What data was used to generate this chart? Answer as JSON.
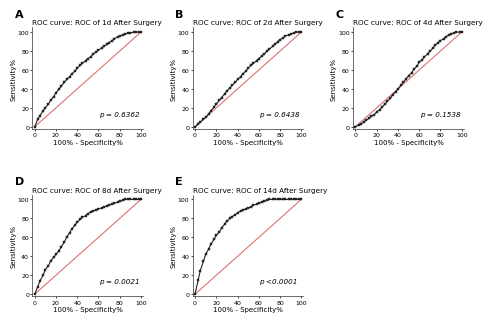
{
  "panels": [
    {
      "label": "A",
      "title": "ROC curve: ROC of 1d After Surgery",
      "p_value": "p = 0.6362",
      "roc_x": [
        0,
        3,
        5,
        8,
        10,
        13,
        15,
        18,
        20,
        23,
        25,
        28,
        30,
        33,
        35,
        38,
        40,
        43,
        45,
        48,
        50,
        53,
        55,
        58,
        60,
        63,
        65,
        68,
        70,
        73,
        75,
        78,
        80,
        83,
        85,
        88,
        90,
        93,
        95,
        98,
        100
      ],
      "roc_y": [
        0,
        8,
        12,
        17,
        20,
        24,
        28,
        32,
        36,
        40,
        43,
        47,
        50,
        53,
        56,
        59,
        62,
        65,
        67,
        70,
        72,
        74,
        77,
        79,
        81,
        83,
        85,
        87,
        89,
        91,
        93,
        95,
        96,
        97,
        98,
        99,
        99,
        100,
        100,
        100,
        100
      ]
    },
    {
      "label": "B",
      "title": "ROC curve: ROC of 2d After Surgery",
      "p_value": "p = 0.6438",
      "roc_x": [
        0,
        3,
        5,
        8,
        10,
        13,
        15,
        18,
        20,
        23,
        25,
        28,
        30,
        33,
        35,
        38,
        40,
        43,
        45,
        48,
        50,
        53,
        55,
        58,
        60,
        63,
        65,
        68,
        70,
        73,
        75,
        78,
        80,
        83,
        85,
        88,
        90,
        93,
        95,
        98,
        100
      ],
      "roc_y": [
        0,
        3,
        5,
        8,
        10,
        14,
        17,
        21,
        24,
        28,
        31,
        35,
        38,
        41,
        44,
        47,
        50,
        53,
        56,
        59,
        62,
        65,
        67,
        70,
        72,
        75,
        77,
        80,
        82,
        85,
        87,
        90,
        92,
        94,
        96,
        97,
        98,
        99,
        100,
        100,
        100
      ]
    },
    {
      "label": "C",
      "title": "ROC curve: ROC of 4d After Surgery",
      "p_value": "p = 0.1538",
      "roc_x": [
        0,
        3,
        5,
        8,
        10,
        13,
        15,
        18,
        20,
        23,
        25,
        28,
        30,
        33,
        35,
        38,
        40,
        43,
        45,
        48,
        50,
        53,
        55,
        58,
        60,
        63,
        65,
        68,
        70,
        73,
        75,
        78,
        80,
        83,
        85,
        88,
        90,
        93,
        95,
        98,
        100
      ],
      "roc_y": [
        0,
        2,
        3,
        5,
        7,
        9,
        11,
        13,
        16,
        18,
        21,
        24,
        27,
        30,
        34,
        37,
        40,
        44,
        47,
        51,
        54,
        57,
        61,
        64,
        68,
        71,
        74,
        77,
        80,
        83,
        86,
        89,
        91,
        93,
        95,
        97,
        98,
        99,
        100,
        100,
        100
      ]
    },
    {
      "label": "D",
      "title": "ROC curve: ROC of 8d After Surgery",
      "p_value": "p = 0.0021",
      "roc_x": [
        0,
        3,
        5,
        8,
        10,
        13,
        15,
        18,
        20,
        23,
        25,
        28,
        30,
        33,
        35,
        38,
        40,
        43,
        45,
        48,
        50,
        53,
        55,
        58,
        60,
        63,
        65,
        68,
        70,
        73,
        75,
        78,
        80,
        83,
        85,
        88,
        90,
        93,
        95,
        98,
        100
      ],
      "roc_y": [
        0,
        8,
        14,
        20,
        26,
        30,
        35,
        39,
        42,
        46,
        50,
        55,
        60,
        65,
        69,
        73,
        76,
        79,
        81,
        83,
        85,
        87,
        88,
        89,
        90,
        91,
        92,
        93,
        94,
        95,
        96,
        97,
        98,
        99,
        100,
        100,
        100,
        100,
        100,
        100,
        100
      ]
    },
    {
      "label": "E",
      "title": "ROC curve: ROC of 14d After Surgery",
      "p_value": "p <0.0001",
      "roc_x": [
        0,
        3,
        5,
        8,
        10,
        13,
        15,
        18,
        20,
        23,
        25,
        28,
        30,
        33,
        35,
        38,
        40,
        43,
        45,
        48,
        50,
        53,
        55,
        58,
        60,
        63,
        65,
        68,
        70,
        73,
        75,
        78,
        80,
        83,
        85,
        88,
        90,
        93,
        95,
        98,
        100
      ],
      "roc_y": [
        0,
        15,
        25,
        35,
        42,
        48,
        53,
        58,
        62,
        66,
        70,
        74,
        77,
        80,
        82,
        84,
        86,
        88,
        89,
        90,
        91,
        92,
        94,
        95,
        96,
        97,
        98,
        99,
        100,
        100,
        100,
        100,
        100,
        100,
        100,
        100,
        100,
        100,
        100,
        100,
        100
      ]
    }
  ],
  "diagonal_color": "#e07070",
  "curve_color": "#222222",
  "marker_style": "s",
  "marker_size": 2.0,
  "line_width": 0.8,
  "bg_color": "#ffffff",
  "plot_bg_color": "#ffffff",
  "xlabel": "100% - Specificity%",
  "ylabel": "Sensitivity%",
  "tick_labels": [
    0,
    20,
    40,
    60,
    80,
    100
  ],
  "title_fontsize": 5.2,
  "label_fontsize": 5.0,
  "tick_fontsize": 4.5,
  "panel_label_fontsize": 8,
  "p_fontsize": 5.2
}
